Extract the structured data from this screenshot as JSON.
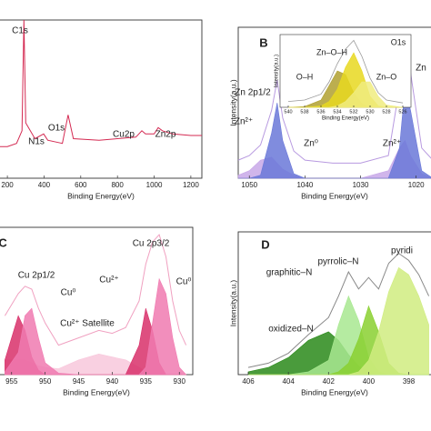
{
  "chart_data": [
    {
      "type": "line",
      "xlabel": "Binding Energy(eV)",
      "x": [
        150,
        200,
        250,
        280,
        290,
        300,
        350,
        398,
        420,
        500,
        531,
        560,
        700,
        800,
        900,
        933,
        953,
        1000,
        1022,
        1045,
        1100,
        1200,
        1260
      ],
      "xlim": [
        150,
        1260
      ],
      "xticks": [
        200,
        400,
        600,
        800,
        1000,
        1200
      ],
      "ylim": [
        0,
        100
      ],
      "series": [
        {
          "color": "#d42a52",
          "fill": false,
          "values": [
            20,
            20,
            22,
            30,
            100,
            35,
            25,
            28,
            24,
            22,
            40,
            25,
            24,
            25,
            26,
            30,
            28,
            28,
            32,
            30,
            28,
            27,
            27
          ]
        }
      ],
      "annotations": [
        {
          "text": "C1s",
          "color": "#222"
        },
        {
          "text": "N1s",
          "color": "#1a9a6a"
        },
        {
          "text": "O1s",
          "color": "#a8a818"
        },
        {
          "text": "Cu2p",
          "color": "#d42a8a"
        },
        {
          "text": "Zn2p",
          "color": "#8a3ac8"
        }
      ]
    },
    {
      "type": "line",
      "label": "B",
      "xlabel": "Binding Energy(eV)",
      "ylabel": "Intensity(a.u.)",
      "x": [
        1052,
        1050,
        1048,
        1046,
        1045,
        1044,
        1042,
        1040,
        1035,
        1030,
        1025,
        1023,
        1022,
        1021,
        1019,
        1017
      ],
      "xlim": [
        1052,
        1017
      ],
      "xticks": [
        1050,
        1040,
        1030,
        1020
      ],
      "ylim": [
        0,
        100
      ],
      "series": [
        {
          "color": "#c8a8e8",
          "fill": true,
          "values": [
            2,
            5,
            12,
            14,
            10,
            6,
            2,
            0,
            0,
            0,
            5,
            20,
            25,
            15,
            3,
            0
          ]
        },
        {
          "color": "#6a78d8",
          "fill": true,
          "values": [
            0,
            0,
            2,
            30,
            50,
            25,
            3,
            0,
            0,
            0,
            0,
            20,
            60,
            45,
            5,
            0
          ]
        },
        {
          "color": "#b89ae0",
          "fill": false,
          "values": [
            12,
            15,
            22,
            45,
            65,
            40,
            18,
            12,
            10,
            10,
            15,
            60,
            95,
            70,
            20,
            12
          ]
        }
      ],
      "annotations": [
        {
          "text": "Zn 2p1/2",
          "color": "#222"
        },
        {
          "text": "Zn²⁺",
          "color": "#222"
        },
        {
          "text": "Zn⁰",
          "color": "#222"
        },
        {
          "text": "Zn²⁺",
          "color": "#222"
        },
        {
          "text": "Zn",
          "color": "#5a3ac8"
        }
      ]
    },
    {
      "type": "line",
      "title": "O1s",
      "xlabel": "Binding Energy(eV)",
      "ylabel": "Intensity(a.u.)",
      "x": [
        540,
        538,
        536,
        535,
        534,
        533,
        532,
        531,
        530,
        529,
        528,
        526
      ],
      "xlim": [
        541,
        525
      ],
      "xticks": [
        540,
        538,
        536,
        534,
        532,
        530,
        528,
        526
      ],
      "ylim": [
        0,
        100
      ],
      "series": [
        {
          "color": "#b0a030",
          "fill": true,
          "values": [
            0,
            1,
            10,
            30,
            50,
            45,
            20,
            5,
            0,
            0,
            0,
            0
          ]
        },
        {
          "color": "#e8d820",
          "fill": true,
          "values": [
            0,
            0,
            2,
            8,
            25,
            55,
            75,
            50,
            15,
            2,
            0,
            0
          ]
        },
        {
          "color": "#f0ec80",
          "fill": true,
          "values": [
            0,
            0,
            0,
            0,
            2,
            8,
            20,
            35,
            35,
            15,
            3,
            0
          ]
        },
        {
          "color": "#999999",
          "fill": false,
          "values": [
            8,
            10,
            18,
            35,
            60,
            80,
            92,
            70,
            40,
            20,
            10,
            6
          ]
        }
      ],
      "annotations": [
        {
          "text": "Zn–O–H",
          "color": "#8a7a10"
        },
        {
          "text": "O–H",
          "color": "#8a7a10"
        },
        {
          "text": "Zn–O",
          "color": "#b0a818"
        }
      ]
    },
    {
      "type": "line",
      "label": "C",
      "xlabel": "Binding Energy(eV)",
      "x": [
        956,
        954,
        953,
        952,
        951,
        950,
        948,
        945,
        942,
        940,
        938,
        936,
        935,
        934,
        933,
        932,
        931,
        930,
        929
      ],
      "xlim": [
        957,
        928
      ],
      "xticks": [
        955,
        950,
        945,
        940,
        935,
        930
      ],
      "ylim": [
        0,
        100
      ],
      "series": [
        {
          "color": "#f8c8dc",
          "fill": true,
          "values": [
            10,
            10,
            10,
            8,
            6,
            5,
            4,
            10,
            14,
            12,
            10,
            5,
            2,
            0,
            0,
            0,
            0,
            0,
            0
          ]
        },
        {
          "color": "#d8306a",
          "fill": true,
          "values": [
            10,
            40,
            30,
            12,
            3,
            0,
            0,
            0,
            0,
            0,
            0,
            20,
            45,
            30,
            8,
            0,
            0,
            0,
            0
          ]
        },
        {
          "color": "#f07ab0",
          "fill": true,
          "values": [
            2,
            15,
            40,
            45,
            25,
            8,
            1,
            0,
            0,
            0,
            0,
            0,
            5,
            35,
            65,
            55,
            25,
            5,
            0
          ]
        },
        {
          "color": "#f0a0c0",
          "fill": false,
          "values": [
            40,
            55,
            60,
            58,
            45,
            35,
            20,
            25,
            30,
            28,
            32,
            50,
            75,
            90,
            95,
            80,
            50,
            30,
            20
          ]
        }
      ],
      "annotations": [
        {
          "text": "Cu 2p1/2",
          "color": "#d42a8a"
        },
        {
          "text": "Cu⁰",
          "color": "#d42a8a"
        },
        {
          "text": "Cu²⁺",
          "color": "#c01040"
        },
        {
          "text": "Cu 2p3/2",
          "color": "#d42a8a"
        },
        {
          "text": "Cu⁰",
          "color": "#d42a8a"
        },
        {
          "text": "Cu²⁺ Satellite",
          "color": "#222"
        }
      ]
    },
    {
      "type": "line",
      "label": "D",
      "xlabel": "Binding Energy(eV)",
      "ylabel": "Intensity(a.u.)",
      "x": [
        406,
        405,
        404,
        403,
        402,
        401.5,
        401,
        400.5,
        400,
        399.5,
        399,
        398.5,
        398,
        397.5,
        397
      ],
      "xlim": [
        406.5,
        396.8
      ],
      "xticks": [
        406,
        404,
        402,
        400,
        398
      ],
      "ylim": [
        0,
        100
      ],
      "series": [
        {
          "color": "#2a8a1a",
          "fill": true,
          "values": [
            2,
            5,
            12,
            24,
            30,
            24,
            14,
            6,
            2,
            0,
            0,
            0,
            0,
            0,
            0
          ]
        },
        {
          "color": "#a8e890",
          "fill": true,
          "values": [
            0,
            0,
            0,
            2,
            10,
            35,
            55,
            38,
            12,
            2,
            0,
            0,
            0,
            0,
            0
          ]
        },
        {
          "color": "#8ad030",
          "fill": true,
          "values": [
            0,
            0,
            0,
            0,
            0,
            2,
            8,
            25,
            48,
            30,
            8,
            1,
            0,
            0,
            0
          ]
        },
        {
          "color": "#d0ec80",
          "fill": true,
          "values": [
            0,
            0,
            0,
            0,
            0,
            0,
            0,
            2,
            10,
            30,
            58,
            75,
            70,
            55,
            35
          ]
        },
        {
          "color": "#888888",
          "fill": false,
          "values": [
            5,
            8,
            15,
            28,
            40,
            55,
            72,
            60,
            68,
            60,
            78,
            85,
            80,
            70,
            55
          ]
        }
      ],
      "annotations": [
        {
          "text": "pyrrolic–N",
          "color": "#6ab020"
        },
        {
          "text": "pyridi",
          "color": "#a0c020"
        },
        {
          "text": "graphitic–N",
          "color": "#3aa82a"
        },
        {
          "text": "oxidized–N",
          "color": "#2a8a1a"
        }
      ]
    }
  ]
}
